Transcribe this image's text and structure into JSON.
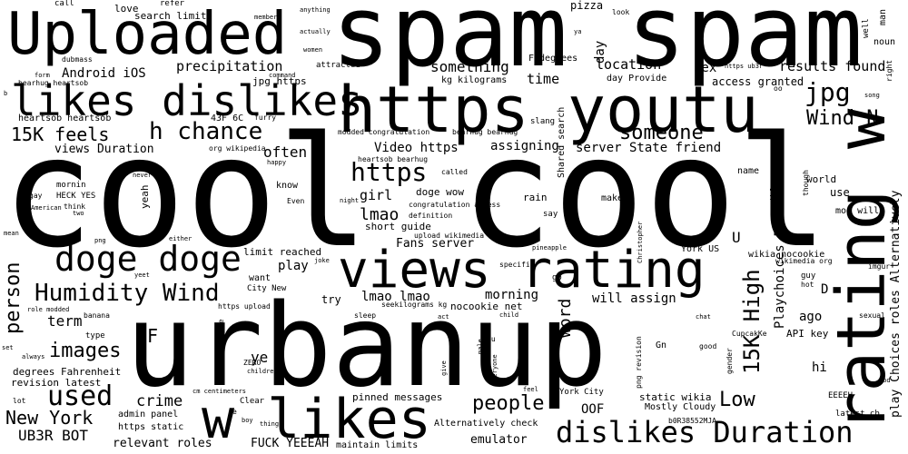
{
  "words": [
    "spam spam",
    "Uploaded",
    "https youtu",
    "likes dislikes",
    "cool cool",
    "rating w",
    "urbanup",
    "views rating",
    "doge doge",
    "w likes",
    "dislikes Duration",
    "Humidity Wind",
    "h chance",
    "15K feels",
    "person",
    "https",
    "lmao",
    "jpg",
    "Wind N",
    "15K High",
    "used",
    "images",
    "people",
    "someone",
    "New York",
    "UB3R BOT",
    "Android iOS",
    "precipitation",
    "something",
    "location",
    "results found",
    "sex",
    "time",
    "views Duration",
    "often",
    "Video https",
    "assigning",
    "server State friend",
    "girl",
    "Fans server",
    "morning",
    "word",
    "term",
    "crime",
    "Low",
    "F",
    "lmao lmao",
    "play",
    "will assign",
    "ago",
    "hi",
    "OOF",
    "emulator",
    "relevant roles",
    "FUCK YEEEAH",
    "doge wow",
    "short guide",
    "heartsob heartsob",
    "F degrees",
    "day",
    "access granted",
    "day Provide",
    "jpg https",
    "bearhug heartsob",
    "kg kilograms",
    "Shared search",
    "Playchoices Fans",
    "play Choices roles Alternatively",
    "pinned messages",
    "static wikia",
    "Mostly Cloudy",
    "Alternatively check",
    "maintain limits",
    "admin panel",
    "https static",
    "degrees Fahrenheit",
    "revision latest",
    "ye",
    "want",
    "City New",
    "try",
    "nocookie net",
    "limit reached",
    "upload wikimedia",
    "mod will",
    "wikia nocookie",
    "York US",
    "API key",
    "latest cb",
    "b0R38552MJA",
    "EEEEH",
    "York City",
    "U",
    "D",
    "Gn",
    "CupcakKe",
    "pizza",
    "search limit",
    "call",
    "love",
    "refer",
    "member",
    "anything",
    "actually",
    "women",
    "attracted",
    "command",
    "look",
    "ya",
    "well",
    "man",
    "noun",
    "right",
    "song",
    "oo",
    "slang",
    "modded congratulation",
    "bearhug bearhug",
    "heartsob bearhug",
    "called",
    "43F 6C",
    "furry",
    "org wikipedia",
    "happy",
    "mornin",
    "HECK YES",
    "know",
    "Even",
    "night",
    "yeah",
    "never",
    "gay",
    "American",
    "think",
    "two",
    "mean",
    "png",
    "either",
    "congratulation access",
    "definition",
    "rain",
    "say",
    "make",
    "name",
    "Welcome",
    "world",
    "use",
    "though",
    "Christopher",
    "pineapple",
    "specific",
    "joke",
    "go",
    "guy",
    "hot",
    "imgur",
    "wikimedia org",
    "sexual",
    "chat",
    "good",
    "gender",
    "png revision",
    "yeet",
    "banana",
    "role modded",
    "type",
    "always",
    "set",
    "lot",
    "describe",
    "ZERO",
    "children",
    "cm centimeters",
    "Clear",
    "e",
    "boy",
    "thing",
    "feel",
    "give",
    "everyone",
    "male",
    "su",
    "act",
    "child",
    "sleep",
    "seekilograms kg",
    "https upload",
    "dubmass",
    "form",
    "b",
    "https ub3r",
    "god",
    "0"
  ]
}
